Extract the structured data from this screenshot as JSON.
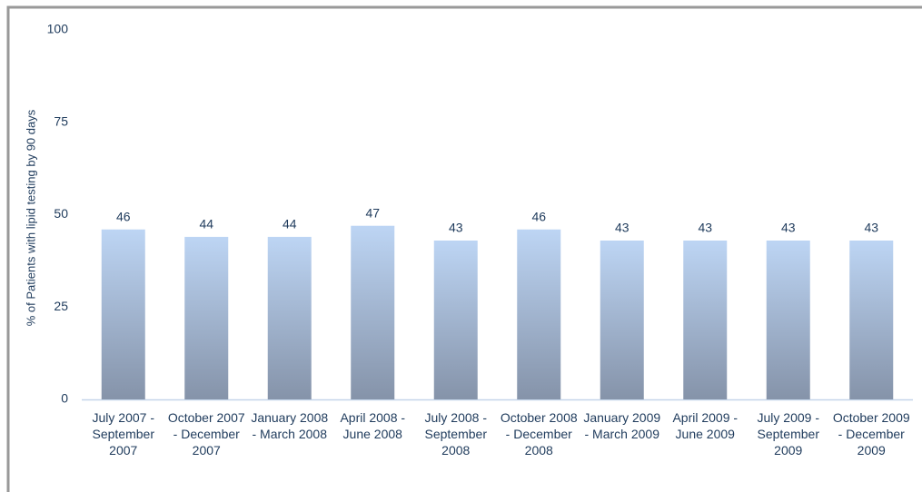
{
  "chart_data": {
    "type": "bar",
    "y_axis_label": "% of Patients with lipid testing by 90 days",
    "categories": [
      "July 2007 - September 2007",
      "October 2007 - December 2007",
      "January 2008 - March 2008",
      "April 2008 - June 2008",
      "July 2008 - September 2008",
      "October 2008 - December 2008",
      "January 2009 - March 2009",
      "April 2009 - June 2009",
      "July 2009 - September 2009",
      "October 2009 - December 2009"
    ],
    "values": [
      46,
      44,
      44,
      47,
      43,
      46,
      43,
      43,
      43,
      43
    ],
    "color": "#a9c3e6",
    "ylim": [
      0,
      100
    ],
    "yticks": [
      0,
      25,
      50,
      75,
      100
    ],
    "grid": false
  }
}
